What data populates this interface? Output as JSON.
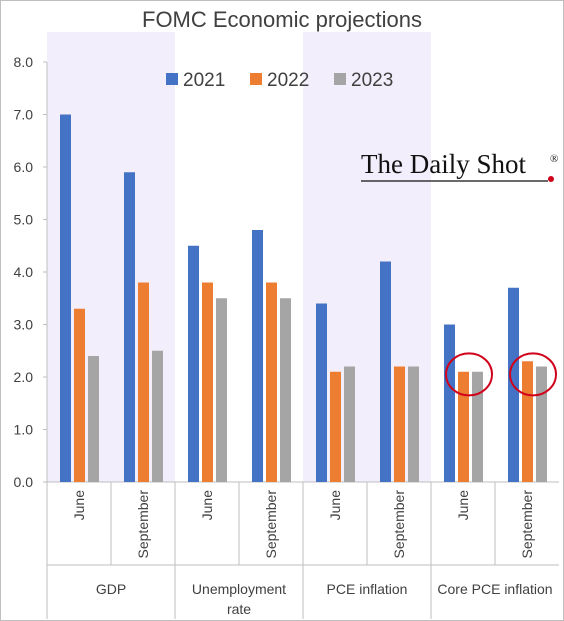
{
  "chart_data": {
    "type": "bar",
    "title": "FOMC Economic projections",
    "groups": [
      {
        "name": "GDP",
        "categories": [
          "June",
          "September"
        ]
      },
      {
        "name": "Unemployment rate",
        "name_lines": [
          "Unemployment",
          "rate"
        ],
        "categories": [
          "June",
          "September"
        ]
      },
      {
        "name": "PCE inflation",
        "categories": [
          "June",
          "September"
        ]
      },
      {
        "name": "Core PCE inflation",
        "categories": [
          "June",
          "September"
        ]
      }
    ],
    "series": [
      {
        "name": "2021",
        "color": "#4472C4",
        "values": [
          7.0,
          5.9,
          4.5,
          4.8,
          3.4,
          4.2,
          3.0,
          3.7
        ]
      },
      {
        "name": "2022",
        "color": "#ED7D31",
        "values": [
          3.3,
          3.8,
          3.8,
          3.8,
          2.1,
          2.2,
          2.1,
          2.3
        ]
      },
      {
        "name": "2023",
        "color": "#A5A5A5",
        "values": [
          2.4,
          2.5,
          3.5,
          3.5,
          2.2,
          2.2,
          2.1,
          2.2
        ]
      }
    ],
    "ylim": [
      0,
      8
    ],
    "yticks": [
      "0.0",
      "1.0",
      "2.0",
      "3.0",
      "4.0",
      "5.0",
      "6.0",
      "7.0",
      "8.0"
    ],
    "grid": false,
    "legend_position": "top",
    "shaded_groups": [
      "GDP",
      "PCE inflation"
    ],
    "shade_color": "#F3EEFC",
    "circled_categories": [
      "Core PCE inflation June",
      "Core PCE inflation September"
    ],
    "circle_color": "#D0021B",
    "source_logo": "The Daily Shot",
    "logo_mark": "®"
  }
}
